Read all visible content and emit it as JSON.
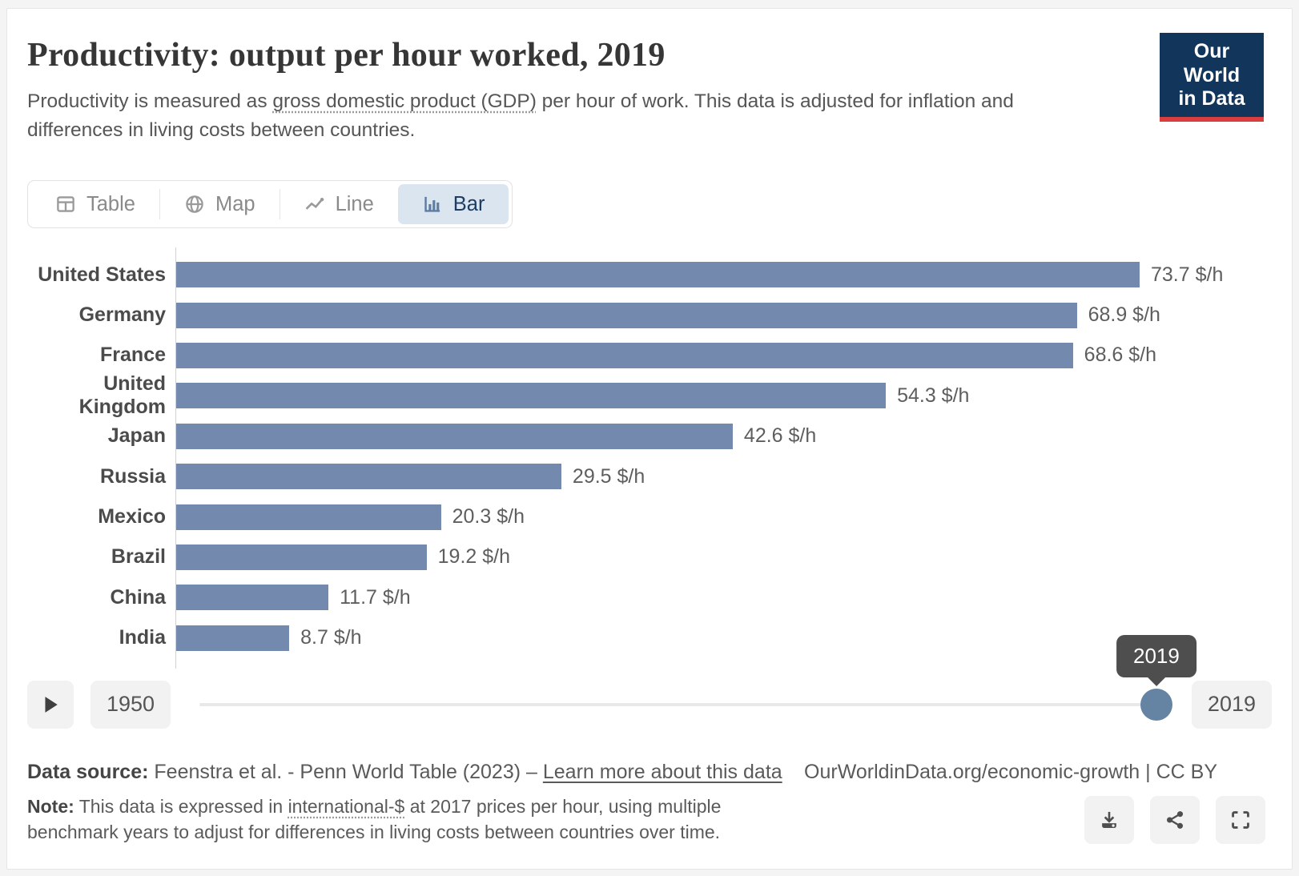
{
  "header": {
    "title": "Productivity: output per hour worked, 2019",
    "subtitle_pre": "Productivity is measured as ",
    "subtitle_link": "gross domestic product (GDP)",
    "subtitle_post": " per hour of work. This data is adjusted for inflation and differences in living costs between countries.",
    "logo_line1": "Our World",
    "logo_line2": "in Data"
  },
  "tabs": {
    "items": [
      {
        "label": "Table"
      },
      {
        "label": "Map"
      },
      {
        "label": "Line"
      },
      {
        "label": "Bar"
      }
    ],
    "selected": "Bar"
  },
  "chart_data": {
    "type": "bar",
    "orientation": "horizontal",
    "title": "Productivity: output per hour worked, 2019",
    "categories": [
      "United States",
      "Germany",
      "France",
      "United Kingdom",
      "Japan",
      "Russia",
      "Mexico",
      "Brazil",
      "China",
      "India"
    ],
    "values": [
      73.7,
      68.9,
      68.6,
      54.3,
      42.6,
      29.5,
      20.3,
      19.2,
      11.7,
      8.7
    ],
    "unit": "$/h",
    "xlim": [
      0,
      73.7
    ],
    "bar_color": "#7389ae",
    "grid": false,
    "legend": "none",
    "value_label_format": "{value} $/h"
  },
  "timeline": {
    "start_year": "1950",
    "end_year": "2019",
    "current_year": "2019",
    "tooltip": "2019"
  },
  "footer": {
    "source_label": "Data source:",
    "source_text": " Feenstra et al. - Penn World Table (2023) – ",
    "source_link": "Learn more about this data",
    "note_label": "Note:",
    "note_pre": " This data is expressed in ",
    "note_link": "international-$",
    "note_post": " at 2017 prices per hour, using multiple benchmark years to adjust for differences in living costs between countries over time.",
    "rights": "OurWorldinData.org/economic-growth | CC BY"
  },
  "colors": {
    "bar": "#7389ae",
    "handle": "#6583a3",
    "selected_tab_bg": "#dbe5f0",
    "selected_tab_text": "#1d3d63",
    "logo_navy": "#12355b",
    "logo_red": "#d93d3d"
  }
}
